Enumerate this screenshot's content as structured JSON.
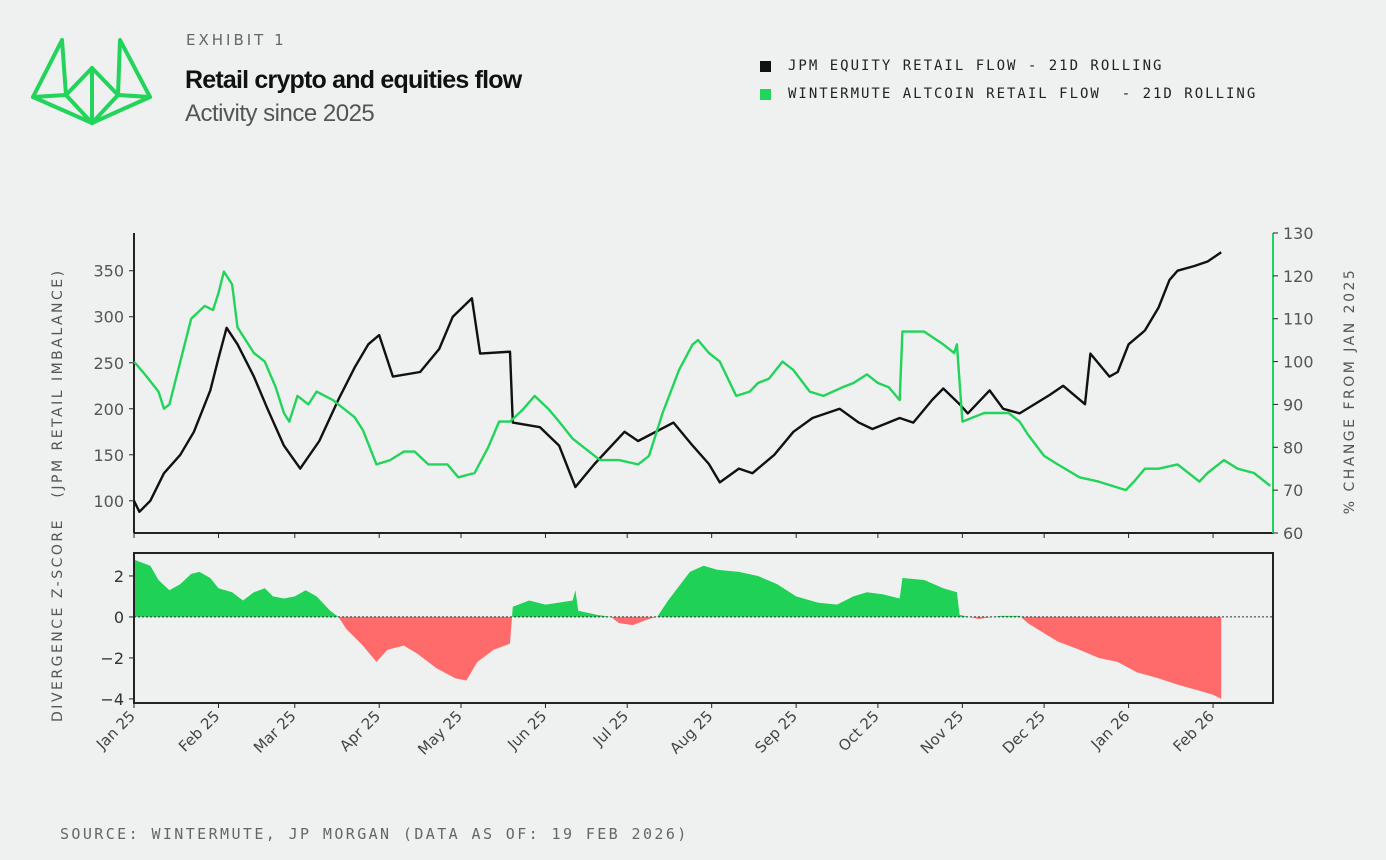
{
  "header": {
    "exhibit": "EXHIBIT 1",
    "title": "Retail crypto and equities flow",
    "subtitle": "Activity since 2025",
    "logo": "Wintermute"
  },
  "source": "SOURCE: WINTERMUTE, JP MORGAN (DATA AS OF: 19 FEB 2026)",
  "colors": {
    "background": "#eff0f0",
    "jpm": "#111111",
    "wintermute": "#22d45a",
    "positive_fill": "#1fd155",
    "negative_fill": "#ff6b6b"
  },
  "chart_data": [
    {
      "type": "line",
      "legend_position": "top-right",
      "xlim": [
        "2025-01-01",
        "2026-02-23"
      ],
      "x_ticks": [
        "Jan 25",
        "Feb 25",
        "Mar 25",
        "Apr 25",
        "May 25",
        "Jun 25",
        "Jul 25",
        "Aug 25",
        "Sep 25",
        "Oct 25",
        "Nov 25",
        "Dec 25",
        "Jan 26",
        "Feb 26"
      ],
      "x_tick_dates": [
        "2025-01-01",
        "2025-02-01",
        "2025-03-01",
        "2025-04-01",
        "2025-05-01",
        "2025-06-01",
        "2025-07-01",
        "2025-08-01",
        "2025-09-01",
        "2025-10-01",
        "2025-11-01",
        "2025-12-01",
        "2026-01-01",
        "2026-02-01"
      ],
      "ylabel_left": "(JPM RETAIL IMBALANCE)",
      "ylim_left": [
        65,
        391
      ],
      "yticks_left": [
        100,
        150,
        200,
        250,
        300,
        350
      ],
      "ylabel_right": "% CHANGE FROM JAN 2025",
      "ylim_right": [
        60,
        130
      ],
      "yticks_right": [
        60,
        70,
        80,
        90,
        100,
        110,
        120,
        130
      ],
      "grid": false,
      "series": [
        {
          "name": "JPM EQUITY RETAIL FLOW - 21D ROLLING",
          "axis": "left",
          "color": "#111111",
          "points": [
            [
              "2025-01-01",
              100
            ],
            [
              "2025-01-03",
              88
            ],
            [
              "2025-01-07",
              100
            ],
            [
              "2025-01-12",
              130
            ],
            [
              "2025-01-18",
              150
            ],
            [
              "2025-01-23",
              175
            ],
            [
              "2025-01-29",
              220
            ],
            [
              "2025-02-01",
              255
            ],
            [
              "2025-02-04",
              288
            ],
            [
              "2025-02-08",
              270
            ],
            [
              "2025-02-14",
              235
            ],
            [
              "2025-02-19",
              200
            ],
            [
              "2025-02-25",
              160
            ],
            [
              "2025-03-03",
              135
            ],
            [
              "2025-03-10",
              165
            ],
            [
              "2025-03-17",
              210
            ],
            [
              "2025-03-23",
              245
            ],
            [
              "2025-03-28",
              270
            ],
            [
              "2025-04-01",
              280
            ],
            [
              "2025-04-06",
              235
            ],
            [
              "2025-04-16",
              240
            ],
            [
              "2025-04-23",
              265
            ],
            [
              "2025-04-28",
              300
            ],
            [
              "2025-05-05",
              320
            ],
            [
              "2025-05-08",
              260
            ],
            [
              "2025-05-19",
              262
            ],
            [
              "2025-05-20",
              185
            ],
            [
              "2025-05-30",
              180
            ],
            [
              "2025-06-06",
              160
            ],
            [
              "2025-06-12",
              115
            ],
            [
              "2025-06-19",
              140
            ],
            [
              "2025-06-30",
              175
            ],
            [
              "2025-07-05",
              165
            ],
            [
              "2025-07-18",
              185
            ],
            [
              "2025-07-25",
              160
            ],
            [
              "2025-07-31",
              140
            ],
            [
              "2025-08-04",
              120
            ],
            [
              "2025-08-11",
              135
            ],
            [
              "2025-08-16",
              130
            ],
            [
              "2025-08-24",
              150
            ],
            [
              "2025-08-31",
              175
            ],
            [
              "2025-09-07",
              190
            ],
            [
              "2025-09-17",
              200
            ],
            [
              "2025-09-24",
              185
            ],
            [
              "2025-09-29",
              178
            ],
            [
              "2025-10-09",
              190
            ],
            [
              "2025-10-14",
              185
            ],
            [
              "2025-10-21",
              210
            ],
            [
              "2025-10-25",
              222
            ],
            [
              "2025-10-31",
              205
            ],
            [
              "2025-11-03",
              195
            ],
            [
              "2025-11-11",
              220
            ],
            [
              "2025-11-16",
              200
            ],
            [
              "2025-11-22",
              195
            ],
            [
              "2025-12-03",
              215
            ],
            [
              "2025-12-08",
              225
            ],
            [
              "2025-12-16",
              205
            ],
            [
              "2025-12-18",
              260
            ],
            [
              "2025-12-25",
              235
            ],
            [
              "2025-12-28",
              240
            ],
            [
              "2026-01-01",
              270
            ],
            [
              "2026-01-07",
              285
            ],
            [
              "2026-01-12",
              310
            ],
            [
              "2026-01-16",
              340
            ],
            [
              "2026-01-19",
              350
            ],
            [
              "2026-01-25",
              355
            ],
            [
              "2026-01-30",
              360
            ],
            [
              "2026-02-04",
              370
            ]
          ]
        },
        {
          "name": "WINTERMUTE ALTCOIN RETAIL FLOW  - 21D ROLLING",
          "axis": "right",
          "color": "#22d45a",
          "points": [
            [
              "2025-01-01",
              100
            ],
            [
              "2025-01-05",
              97
            ],
            [
              "2025-01-10",
              93
            ],
            [
              "2025-01-12",
              89
            ],
            [
              "2025-01-14",
              90
            ],
            [
              "2025-01-18",
              100
            ],
            [
              "2025-01-22",
              110
            ],
            [
              "2025-01-27",
              113
            ],
            [
              "2025-01-30",
              112
            ],
            [
              "2025-02-01",
              116
            ],
            [
              "2025-02-03",
              121
            ],
            [
              "2025-02-06",
              118
            ],
            [
              "2025-02-08",
              108
            ],
            [
              "2025-02-14",
              102
            ],
            [
              "2025-02-18",
              100
            ],
            [
              "2025-02-22",
              94
            ],
            [
              "2025-02-25",
              88
            ],
            [
              "2025-02-27",
              86
            ],
            [
              "2025-03-02",
              92
            ],
            [
              "2025-03-06",
              90
            ],
            [
              "2025-03-09",
              93
            ],
            [
              "2025-03-15",
              91
            ],
            [
              "2025-03-19",
              89
            ],
            [
              "2025-03-23",
              87
            ],
            [
              "2025-03-26",
              84
            ],
            [
              "2025-03-31",
              76
            ],
            [
              "2025-04-05",
              77
            ],
            [
              "2025-04-10",
              79
            ],
            [
              "2025-04-14",
              79
            ],
            [
              "2025-04-19",
              76
            ],
            [
              "2025-04-26",
              76
            ],
            [
              "2025-04-30",
              73
            ],
            [
              "2025-05-06",
              74
            ],
            [
              "2025-05-11",
              80
            ],
            [
              "2025-05-15",
              86
            ],
            [
              "2025-05-19",
              86
            ],
            [
              "2025-05-24",
              89
            ],
            [
              "2025-05-28",
              92
            ],
            [
              "2025-06-02",
              89
            ],
            [
              "2025-06-06",
              86
            ],
            [
              "2025-06-11",
              82
            ],
            [
              "2025-06-17",
              79
            ],
            [
              "2025-06-21",
              77
            ],
            [
              "2025-06-28",
              77
            ],
            [
              "2025-07-05",
              76
            ],
            [
              "2025-07-09",
              78
            ],
            [
              "2025-07-14",
              88
            ],
            [
              "2025-07-20",
              98
            ],
            [
              "2025-07-25",
              104
            ],
            [
              "2025-07-27",
              105
            ],
            [
              "2025-07-31",
              102
            ],
            [
              "2025-08-04",
              100
            ],
            [
              "2025-08-10",
              92
            ],
            [
              "2025-08-15",
              93
            ],
            [
              "2025-08-18",
              95
            ],
            [
              "2025-08-22",
              96
            ],
            [
              "2025-08-27",
              100
            ],
            [
              "2025-08-31",
              98
            ],
            [
              "2025-09-06",
              93
            ],
            [
              "2025-09-11",
              92
            ],
            [
              "2025-09-18",
              94
            ],
            [
              "2025-09-22",
              95
            ],
            [
              "2025-09-27",
              97
            ],
            [
              "2025-10-01",
              95
            ],
            [
              "2025-10-05",
              94
            ],
            [
              "2025-10-09",
              91
            ],
            [
              "2025-10-10",
              107
            ],
            [
              "2025-10-18",
              107
            ],
            [
              "2025-10-25",
              104
            ],
            [
              "2025-10-29",
              102
            ],
            [
              "2025-10-30",
              104
            ],
            [
              "2025-11-01",
              86
            ],
            [
              "2025-11-09",
              88
            ],
            [
              "2025-11-18",
              88
            ],
            [
              "2025-11-22",
              86
            ],
            [
              "2025-11-25",
              83
            ],
            [
              "2025-12-01",
              78
            ],
            [
              "2025-12-06",
              76
            ],
            [
              "2025-12-14",
              73
            ],
            [
              "2025-12-21",
              72
            ],
            [
              "2025-12-31",
              70
            ],
            [
              "2026-01-03",
              72
            ],
            [
              "2026-01-07",
              75
            ],
            [
              "2026-01-12",
              75
            ],
            [
              "2026-01-19",
              76
            ],
            [
              "2026-01-23",
              74
            ],
            [
              "2026-01-27",
              72
            ],
            [
              "2026-01-30",
              74
            ],
            [
              "2026-02-05",
              77
            ],
            [
              "2026-02-10",
              75
            ],
            [
              "2026-02-16",
              74
            ],
            [
              "2026-02-22",
              71
            ]
          ]
        }
      ]
    },
    {
      "type": "area",
      "xlim": [
        "2025-01-01",
        "2026-02-23"
      ],
      "ylabel": "DIVERGENCE Z-SCORE",
      "ylim": [
        -4.2,
        3.12
      ],
      "yticks": [
        2,
        0,
        -2,
        -4
      ],
      "ytick_labels": [
        "2",
        "0",
        "−2",
        "−4"
      ],
      "zero_line": "dotted",
      "points": [
        [
          "2025-01-01",
          2.8
        ],
        [
          "2025-01-07",
          2.5
        ],
        [
          "2025-01-10",
          1.8
        ],
        [
          "2025-01-14",
          1.3
        ],
        [
          "2025-01-18",
          1.6
        ],
        [
          "2025-01-22",
          2.1
        ],
        [
          "2025-01-25",
          2.2
        ],
        [
          "2025-01-29",
          1.9
        ],
        [
          "2025-02-01",
          1.4
        ],
        [
          "2025-02-06",
          1.2
        ],
        [
          "2025-02-10",
          0.8
        ],
        [
          "2025-02-14",
          1.2
        ],
        [
          "2025-02-18",
          1.4
        ],
        [
          "2025-02-21",
          1.0
        ],
        [
          "2025-02-25",
          0.9
        ],
        [
          "2025-03-01",
          1.0
        ],
        [
          "2025-03-05",
          1.3
        ],
        [
          "2025-03-09",
          1.0
        ],
        [
          "2025-03-14",
          0.3
        ],
        [
          "2025-03-17",
          0
        ],
        [
          "2025-03-20",
          -0.6
        ],
        [
          "2025-03-26",
          -1.4
        ],
        [
          "2025-03-31",
          -2.2
        ],
        [
          "2025-04-04",
          -1.6
        ],
        [
          "2025-04-10",
          -1.4
        ],
        [
          "2025-04-15",
          -1.8
        ],
        [
          "2025-04-22",
          -2.5
        ],
        [
          "2025-04-29",
          -3.0
        ],
        [
          "2025-05-03",
          -3.1
        ],
        [
          "2025-05-07",
          -2.2
        ],
        [
          "2025-05-13",
          -1.6
        ],
        [
          "2025-05-19",
          -1.3
        ],
        [
          "2025-05-20",
          0.5
        ],
        [
          "2025-05-26",
          0.8
        ],
        [
          "2025-06-01",
          0.6
        ],
        [
          "2025-06-06",
          0.7
        ],
        [
          "2025-06-11",
          0.8
        ],
        [
          "2025-06-12",
          1.3
        ],
        [
          "2025-06-13",
          0.3
        ],
        [
          "2025-06-20",
          0.1
        ],
        [
          "2025-06-25",
          0
        ],
        [
          "2025-06-28",
          -0.3
        ],
        [
          "2025-07-03",
          -0.4
        ],
        [
          "2025-07-09",
          -0.1
        ],
        [
          "2025-07-12",
          0
        ],
        [
          "2025-07-16",
          0.8
        ],
        [
          "2025-07-24",
          2.2
        ],
        [
          "2025-07-29",
          2.5
        ],
        [
          "2025-08-03",
          2.3
        ],
        [
          "2025-08-11",
          2.2
        ],
        [
          "2025-08-18",
          2.0
        ],
        [
          "2025-08-25",
          1.6
        ],
        [
          "2025-09-01",
          1.0
        ],
        [
          "2025-09-09",
          0.7
        ],
        [
          "2025-09-16",
          0.6
        ],
        [
          "2025-09-22",
          1.0
        ],
        [
          "2025-09-27",
          1.2
        ],
        [
          "2025-10-03",
          1.1
        ],
        [
          "2025-10-09",
          0.9
        ],
        [
          "2025-10-10",
          1.9
        ],
        [
          "2025-10-18",
          1.8
        ],
        [
          "2025-10-25",
          1.4
        ],
        [
          "2025-10-30",
          1.2
        ],
        [
          "2025-10-31",
          0.1
        ],
        [
          "2025-11-07",
          -0.1
        ],
        [
          "2025-11-15",
          0.05
        ],
        [
          "2025-11-22",
          0.05
        ],
        [
          "2025-11-25",
          -0.3
        ],
        [
          "2025-12-01",
          -0.8
        ],
        [
          "2025-12-06",
          -1.2
        ],
        [
          "2025-12-14",
          -1.6
        ],
        [
          "2025-12-21",
          -2.0
        ],
        [
          "2025-12-28",
          -2.2
        ],
        [
          "2026-01-04",
          -2.7
        ],
        [
          "2026-01-12",
          -3.0
        ],
        [
          "2026-01-19",
          -3.3
        ],
        [
          "2026-01-27",
          -3.6
        ],
        [
          "2026-02-01",
          -3.8
        ],
        [
          "2026-02-04",
          -4.0
        ]
      ]
    }
  ]
}
